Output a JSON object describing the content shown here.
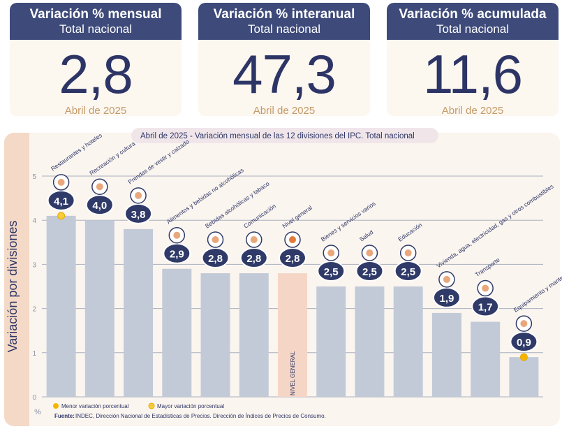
{
  "cards": [
    {
      "title": "Variación % mensual",
      "subtitle": "Total nacional",
      "value": "2,8",
      "date": "Abril de 2025"
    },
    {
      "title": "Variación % interanual",
      "subtitle": "Total nacional",
      "value": "47,3",
      "date": "Abril de 2025"
    },
    {
      "title": "Variación % acumulada",
      "subtitle": "Total nacional",
      "value": "11,6",
      "date": "Abril de 2025"
    }
  ],
  "colors": {
    "header": "#3d4a7a",
    "bar": "#c3cad7",
    "bar_general": "#f5d6c6",
    "badge": "#2f3a68",
    "accent": "#c49a6a",
    "dot_min": "#f5b400",
    "dot_max": "#f7cc3b"
  },
  "chart_data": {
    "type": "bar",
    "title": "Abril de 2025 - Variación mensual de las 12 divisiones del IPC. Total nacional",
    "ylabel": "Variación por divisiones",
    "yunit": "%",
    "ylim": [
      0,
      5
    ],
    "yticks": [
      "0",
      "1",
      "2",
      "3",
      "4",
      "5"
    ],
    "grid": true,
    "categories": [
      "Restaurantes y hoteles",
      "Recreación y cultura",
      "Prendas de vestir y calzado",
      "Alimentos y bebidas no alcohólicas",
      "Bebidas alcohólicas y tabaco",
      "Comunicación",
      "Nivel general",
      "Bienes y servicios varios",
      "Salud",
      "Educación",
      "Vivienda, agua, electricidad, gas y otros combustibles",
      "Transporte",
      "Equipamiento y mantenimiento del hogar"
    ],
    "values": [
      4.1,
      4.0,
      3.8,
      2.9,
      2.8,
      2.8,
      2.8,
      2.5,
      2.5,
      2.5,
      1.9,
      1.7,
      0.9
    ],
    "value_labels": [
      "4,1",
      "4,0",
      "3,8",
      "2,9",
      "2,8",
      "2,8",
      "2,8",
      "2,5",
      "2,5",
      "2,5",
      "1,9",
      "1,7",
      "0,9"
    ],
    "bar_text": {
      "6": "NIVEL GENERAL"
    },
    "legend": [
      "Menor variación porcentual",
      "Mayor variación porcentual"
    ],
    "legend_position": "bottom-left",
    "max_marker_index": 0,
    "min_marker_index": 12
  },
  "footer": {
    "label": "Fuente:",
    "text": "INDEC, Dirección Nacional de Estadísticas de Precios. Dirección de Índices de Precios de Consumo."
  },
  "icons": [
    "cutlery-icon",
    "beach-umbrella-icon",
    "tshirt-icon",
    "food-basket-icon",
    "bottle-glass-icon",
    "smartphone-icon",
    "shopping-basket-icon",
    "comb-scissors-icon",
    "medical-cross-icon",
    "notebook-icon",
    "lightbulb-icon",
    "subway-train-icon",
    "air-conditioner-icon"
  ]
}
